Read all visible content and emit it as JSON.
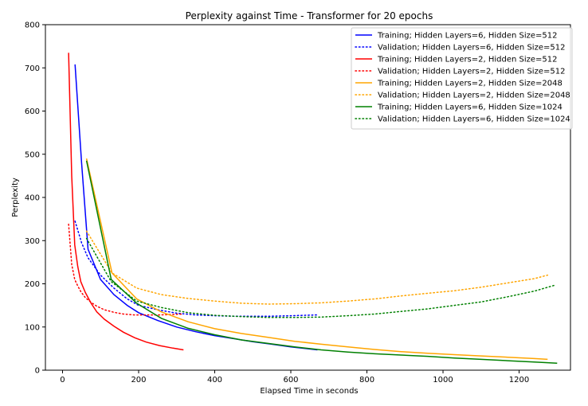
{
  "chart_data": {
    "type": "line",
    "title": "Perplexity against Time - Transformer for 20 epochs",
    "xlabel": "Elapsed Time in seconds",
    "ylabel": "Perplexity",
    "xlim": [
      -45,
      1335
    ],
    "ylim": [
      0,
      800
    ],
    "xticks": [
      0,
      200,
      400,
      600,
      800,
      1000,
      1200
    ],
    "yticks": [
      0,
      100,
      200,
      300,
      400,
      500,
      600,
      700,
      800
    ],
    "grid": false,
    "legend_position": "top-right",
    "series": [
      {
        "name": "Training; Hidden Layers=6, Hidden Size=512",
        "color": "#0000ff",
        "style": "solid",
        "points": [
          [
            33,
            708
          ],
          [
            50,
            480
          ],
          [
            67,
            280
          ],
          [
            100,
            210
          ],
          [
            135,
            175
          ],
          [
            170,
            150
          ],
          [
            200,
            133
          ],
          [
            250,
            115
          ],
          [
            300,
            100
          ],
          [
            350,
            89
          ],
          [
            400,
            80
          ],
          [
            450,
            73
          ],
          [
            500,
            66
          ],
          [
            550,
            60
          ],
          [
            600,
            54
          ],
          [
            670,
            47
          ]
        ]
      },
      {
        "name": "Validation; Hidden Layers=6, Hidden Size=512",
        "color": "#0000ff",
        "style": "dotted",
        "points": [
          [
            33,
            345
          ],
          [
            50,
            295
          ],
          [
            67,
            260
          ],
          [
            100,
            220
          ],
          [
            135,
            190
          ],
          [
            170,
            165
          ],
          [
            200,
            150
          ],
          [
            250,
            140
          ],
          [
            300,
            132
          ],
          [
            350,
            128
          ],
          [
            400,
            126
          ],
          [
            450,
            125
          ],
          [
            500,
            125
          ],
          [
            550,
            125
          ],
          [
            600,
            126
          ],
          [
            670,
            128
          ]
        ]
      },
      {
        "name": "Training; Hidden Layers=2, Hidden Size=512",
        "color": "#ff0000",
        "style": "solid",
        "points": [
          [
            16,
            735
          ],
          [
            24,
            450
          ],
          [
            32,
            290
          ],
          [
            40,
            240
          ],
          [
            48,
            205
          ],
          [
            60,
            180
          ],
          [
            75,
            155
          ],
          [
            90,
            135
          ],
          [
            110,
            118
          ],
          [
            135,
            102
          ],
          [
            160,
            88
          ],
          [
            190,
            75
          ],
          [
            220,
            65
          ],
          [
            255,
            57
          ],
          [
            290,
            51
          ],
          [
            318,
            47
          ]
        ]
      },
      {
        "name": "Validation; Hidden Layers=2, Hidden Size=512",
        "color": "#ff0000",
        "style": "dotted",
        "points": [
          [
            16,
            338
          ],
          [
            24,
            245
          ],
          [
            32,
            210
          ],
          [
            40,
            195
          ],
          [
            48,
            182
          ],
          [
            60,
            168
          ],
          [
            75,
            157
          ],
          [
            90,
            148
          ],
          [
            110,
            140
          ],
          [
            135,
            134
          ],
          [
            160,
            130
          ],
          [
            190,
            128
          ],
          [
            220,
            128
          ],
          [
            255,
            128
          ],
          [
            290,
            129
          ],
          [
            318,
            130
          ]
        ]
      },
      {
        "name": "Training; Hidden Layers=2, Hidden Size=2048",
        "color": "#ffa500",
        "style": "solid",
        "points": [
          [
            63,
            490
          ],
          [
            130,
            225
          ],
          [
            195,
            165
          ],
          [
            260,
            135
          ],
          [
            330,
            112
          ],
          [
            400,
            96
          ],
          [
            470,
            85
          ],
          [
            540,
            76
          ],
          [
            610,
            67
          ],
          [
            680,
            60
          ],
          [
            750,
            54
          ],
          [
            820,
            48
          ],
          [
            890,
            43
          ],
          [
            960,
            39
          ],
          [
            1030,
            36
          ],
          [
            1100,
            33
          ],
          [
            1170,
            30
          ],
          [
            1240,
            27
          ],
          [
            1275,
            25
          ]
        ]
      },
      {
        "name": "Validation; Hidden Layers=2, Hidden Size=2048",
        "color": "#ffa500",
        "style": "dotted",
        "points": [
          [
            63,
            322
          ],
          [
            130,
            225
          ],
          [
            195,
            190
          ],
          [
            260,
            175
          ],
          [
            330,
            166
          ],
          [
            400,
            160
          ],
          [
            470,
            155
          ],
          [
            540,
            153
          ],
          [
            610,
            154
          ],
          [
            680,
            156
          ],
          [
            750,
            160
          ],
          [
            820,
            165
          ],
          [
            890,
            172
          ],
          [
            960,
            178
          ],
          [
            1030,
            184
          ],
          [
            1100,
            192
          ],
          [
            1170,
            202
          ],
          [
            1240,
            212
          ],
          [
            1275,
            220
          ]
        ]
      },
      {
        "name": "Training; Hidden Layers=6, Hidden Size=1024",
        "color": "#008000",
        "style": "solid",
        "points": [
          [
            63,
            485
          ],
          [
            128,
            210
          ],
          [
            195,
            155
          ],
          [
            260,
            120
          ],
          [
            330,
            97
          ],
          [
            400,
            82
          ],
          [
            470,
            70
          ],
          [
            540,
            62
          ],
          [
            610,
            54
          ],
          [
            680,
            47
          ],
          [
            750,
            42
          ],
          [
            820,
            38
          ],
          [
            890,
            35
          ],
          [
            960,
            32
          ],
          [
            1030,
            28
          ],
          [
            1100,
            25
          ],
          [
            1170,
            22
          ],
          [
            1240,
            19
          ],
          [
            1300,
            16
          ]
        ]
      },
      {
        "name": "Validation; Hidden Layers=6, Hidden Size=1024",
        "color": "#008000",
        "style": "dotted",
        "points": [
          [
            63,
            305
          ],
          [
            128,
            205
          ],
          [
            195,
            160
          ],
          [
            260,
            145
          ],
          [
            330,
            133
          ],
          [
            400,
            127
          ],
          [
            470,
            124
          ],
          [
            540,
            122
          ],
          [
            610,
            122
          ],
          [
            680,
            123
          ],
          [
            750,
            126
          ],
          [
            820,
            130
          ],
          [
            890,
            136
          ],
          [
            960,
            142
          ],
          [
            1030,
            150
          ],
          [
            1100,
            158
          ],
          [
            1170,
            170
          ],
          [
            1240,
            183
          ],
          [
            1295,
            197
          ]
        ]
      }
    ]
  }
}
